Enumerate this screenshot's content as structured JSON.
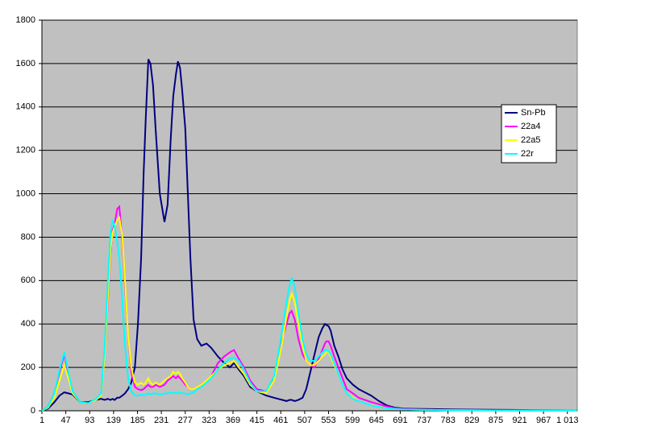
{
  "chart_data": {
    "type": "line",
    "x": [
      1,
      13,
      25,
      35,
      44,
      52,
      60,
      75,
      90,
      105,
      115,
      122,
      128,
      133,
      137,
      141,
      146,
      150,
      156,
      161,
      167,
      173,
      180,
      186,
      192,
      197,
      201,
      206,
      210,
      215,
      220,
      228,
      237,
      243,
      249,
      254,
      259,
      263,
      267,
      271,
      277,
      282,
      287,
      293,
      300,
      308,
      318,
      327,
      340,
      352,
      363,
      371,
      380,
      390,
      402,
      415,
      433,
      448,
      456,
      464,
      472,
      478,
      482,
      488,
      495,
      503,
      510,
      518,
      526,
      534,
      541,
      546,
      549,
      553,
      557,
      564,
      572,
      580,
      588,
      600,
      611,
      623,
      635,
      650,
      665,
      680,
      697,
      740,
      800,
      870,
      950,
      1031
    ],
    "series": [
      {
        "name": "Sn-Pb",
        "color": "#000080",
        "values": [
          0,
          10,
          40,
          70,
          85,
          80,
          75,
          40,
          40,
          50,
          55,
          50,
          55,
          50,
          55,
          50,
          60,
          60,
          70,
          80,
          100,
          130,
          200,
          400,
          700,
          1100,
          1350,
          1620,
          1600,
          1500,
          1300,
          1000,
          870,
          950,
          1250,
          1450,
          1550,
          1610,
          1580,
          1480,
          1300,
          1000,
          700,
          420,
          330,
          300,
          310,
          290,
          250,
          220,
          200,
          220,
          190,
          160,
          110,
          90,
          70,
          60,
          55,
          50,
          45,
          50,
          50,
          45,
          50,
          60,
          100,
          180,
          260,
          340,
          380,
          400,
          395,
          390,
          370,
          300,
          250,
          190,
          150,
          120,
          100,
          85,
          70,
          45,
          25,
          15,
          10,
          8,
          6,
          5,
          3,
          2
        ]
      },
      {
        "name": "22a4",
        "color": "#ff00ff",
        "values": [
          0,
          20,
          80,
          180,
          260,
          170,
          90,
          40,
          35,
          50,
          70,
          250,
          500,
          720,
          830,
          860,
          930,
          940,
          780,
          580,
          350,
          180,
          110,
          100,
          95,
          100,
          110,
          120,
          110,
          110,
          120,
          110,
          120,
          140,
          150,
          160,
          150,
          160,
          150,
          140,
          120,
          110,
          100,
          100,
          110,
          120,
          140,
          160,
          220,
          250,
          270,
          280,
          240,
          200,
          140,
          100,
          90,
          150,
          250,
          330,
          400,
          450,
          460,
          420,
          330,
          260,
          230,
          210,
          200,
          240,
          280,
          310,
          320,
          320,
          300,
          250,
          200,
          150,
          100,
          80,
          60,
          50,
          40,
          30,
          20,
          12,
          8,
          5,
          3,
          2,
          1,
          1
        ]
      },
      {
        "name": "22a5",
        "color": "#ffff00",
        "values": [
          0,
          15,
          60,
          140,
          210,
          150,
          80,
          40,
          35,
          50,
          70,
          250,
          520,
          740,
          820,
          850,
          880,
          890,
          800,
          600,
          350,
          200,
          130,
          120,
          130,
          120,
          130,
          150,
          130,
          120,
          130,
          120,
          140,
          150,
          160,
          180,
          170,
          180,
          170,
          150,
          130,
          110,
          100,
          100,
          110,
          120,
          140,
          160,
          190,
          210,
          220,
          230,
          200,
          170,
          120,
          90,
          80,
          140,
          220,
          320,
          430,
          510,
          540,
          500,
          400,
          300,
          230,
          210,
          210,
          230,
          250,
          260,
          270,
          270,
          250,
          210,
          170,
          120,
          80,
          60,
          45,
          35,
          25,
          20,
          12,
          8,
          6,
          4,
          3,
          2,
          1,
          1
        ]
      },
      {
        "name": "22r",
        "color": "#00ffff",
        "values": [
          0,
          20,
          80,
          190,
          270,
          180,
          90,
          40,
          35,
          55,
          80,
          300,
          600,
          820,
          880,
          850,
          780,
          700,
          500,
          300,
          150,
          90,
          70,
          70,
          75,
          70,
          75,
          80,
          75,
          80,
          80,
          75,
          80,
          80,
          85,
          80,
          85,
          80,
          85,
          80,
          80,
          75,
          80,
          85,
          100,
          110,
          130,
          150,
          190,
          220,
          240,
          245,
          230,
          190,
          130,
          90,
          90,
          160,
          260,
          380,
          500,
          580,
          610,
          570,
          450,
          330,
          260,
          230,
          230,
          250,
          270,
          280,
          280,
          275,
          260,
          220,
          170,
          120,
          80,
          55,
          45,
          35,
          25,
          18,
          12,
          8,
          6,
          4,
          3,
          2,
          1,
          1
        ]
      }
    ],
    "xlim": [
      1,
      1032
    ],
    "xticks": [
      1,
      47,
      93,
      139,
      185,
      231,
      277,
      323,
      369,
      415,
      461,
      507,
      553,
      599,
      645,
      691,
      737,
      783,
      829,
      875,
      921,
      967,
      {
        "value": 1013,
        "label": "1 013"
      }
    ],
    "ylim": [
      0,
      1800
    ],
    "yticks": [
      0,
      200,
      400,
      600,
      800,
      1000,
      1200,
      1400,
      1600,
      1800
    ],
    "grid": true,
    "legend": "right"
  }
}
